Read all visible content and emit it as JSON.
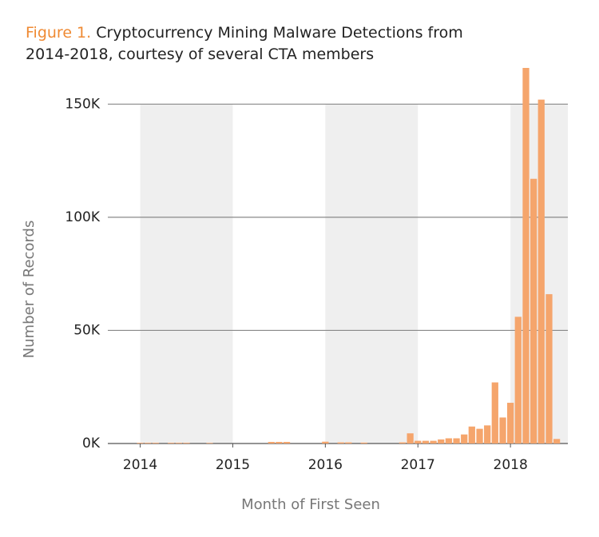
{
  "chart_data": {
    "type": "bar",
    "figure_label": "Figure 1.",
    "title": "Cryptocurrency Mining Malware Detections from 2014-2018, courtesy of several CTA members",
    "x_label": "Month of First Seen",
    "y_label": "Number of Records",
    "x": [
      2014.0,
      2014.083,
      2014.167,
      2014.333,
      2014.417,
      2014.5,
      2014.75,
      2015.417,
      2015.5,
      2015.583,
      2016.0,
      2016.167,
      2016.25,
      2016.417,
      2016.833,
      2016.917,
      2017.0,
      2017.083,
      2017.167,
      2017.25,
      2017.333,
      2017.417,
      2017.5,
      2017.583,
      2017.667,
      2017.75,
      2017.833,
      2017.917,
      2018.0,
      2018.083,
      2018.167,
      2018.25,
      2018.333,
      2018.417,
      2018.5
    ],
    "values": [
      300,
      300,
      300,
      300,
      300,
      300,
      250,
      700,
      700,
      700,
      800,
      500,
      500,
      400,
      500,
      4500,
      1200,
      1200,
      1200,
      1800,
      2300,
      2300,
      4000,
      7500,
      6500,
      8000,
      27000,
      11500,
      18000,
      56000,
      166000,
      117000,
      152000,
      66000,
      2000
    ],
    "color": "#f5a56c",
    "xlim": [
      2013.65,
      2018.62
    ],
    "xticks": [
      2014,
      2015,
      2016,
      2017,
      2018
    ],
    "ylim": [
      0,
      166000
    ],
    "yticks": [
      {
        "value": 0,
        "label": "0K"
      },
      {
        "value": 50000,
        "label": "50K"
      },
      {
        "value": 100000,
        "label": "100K"
      },
      {
        "value": 150000,
        "label": "150K"
      }
    ],
    "grid": true
  }
}
